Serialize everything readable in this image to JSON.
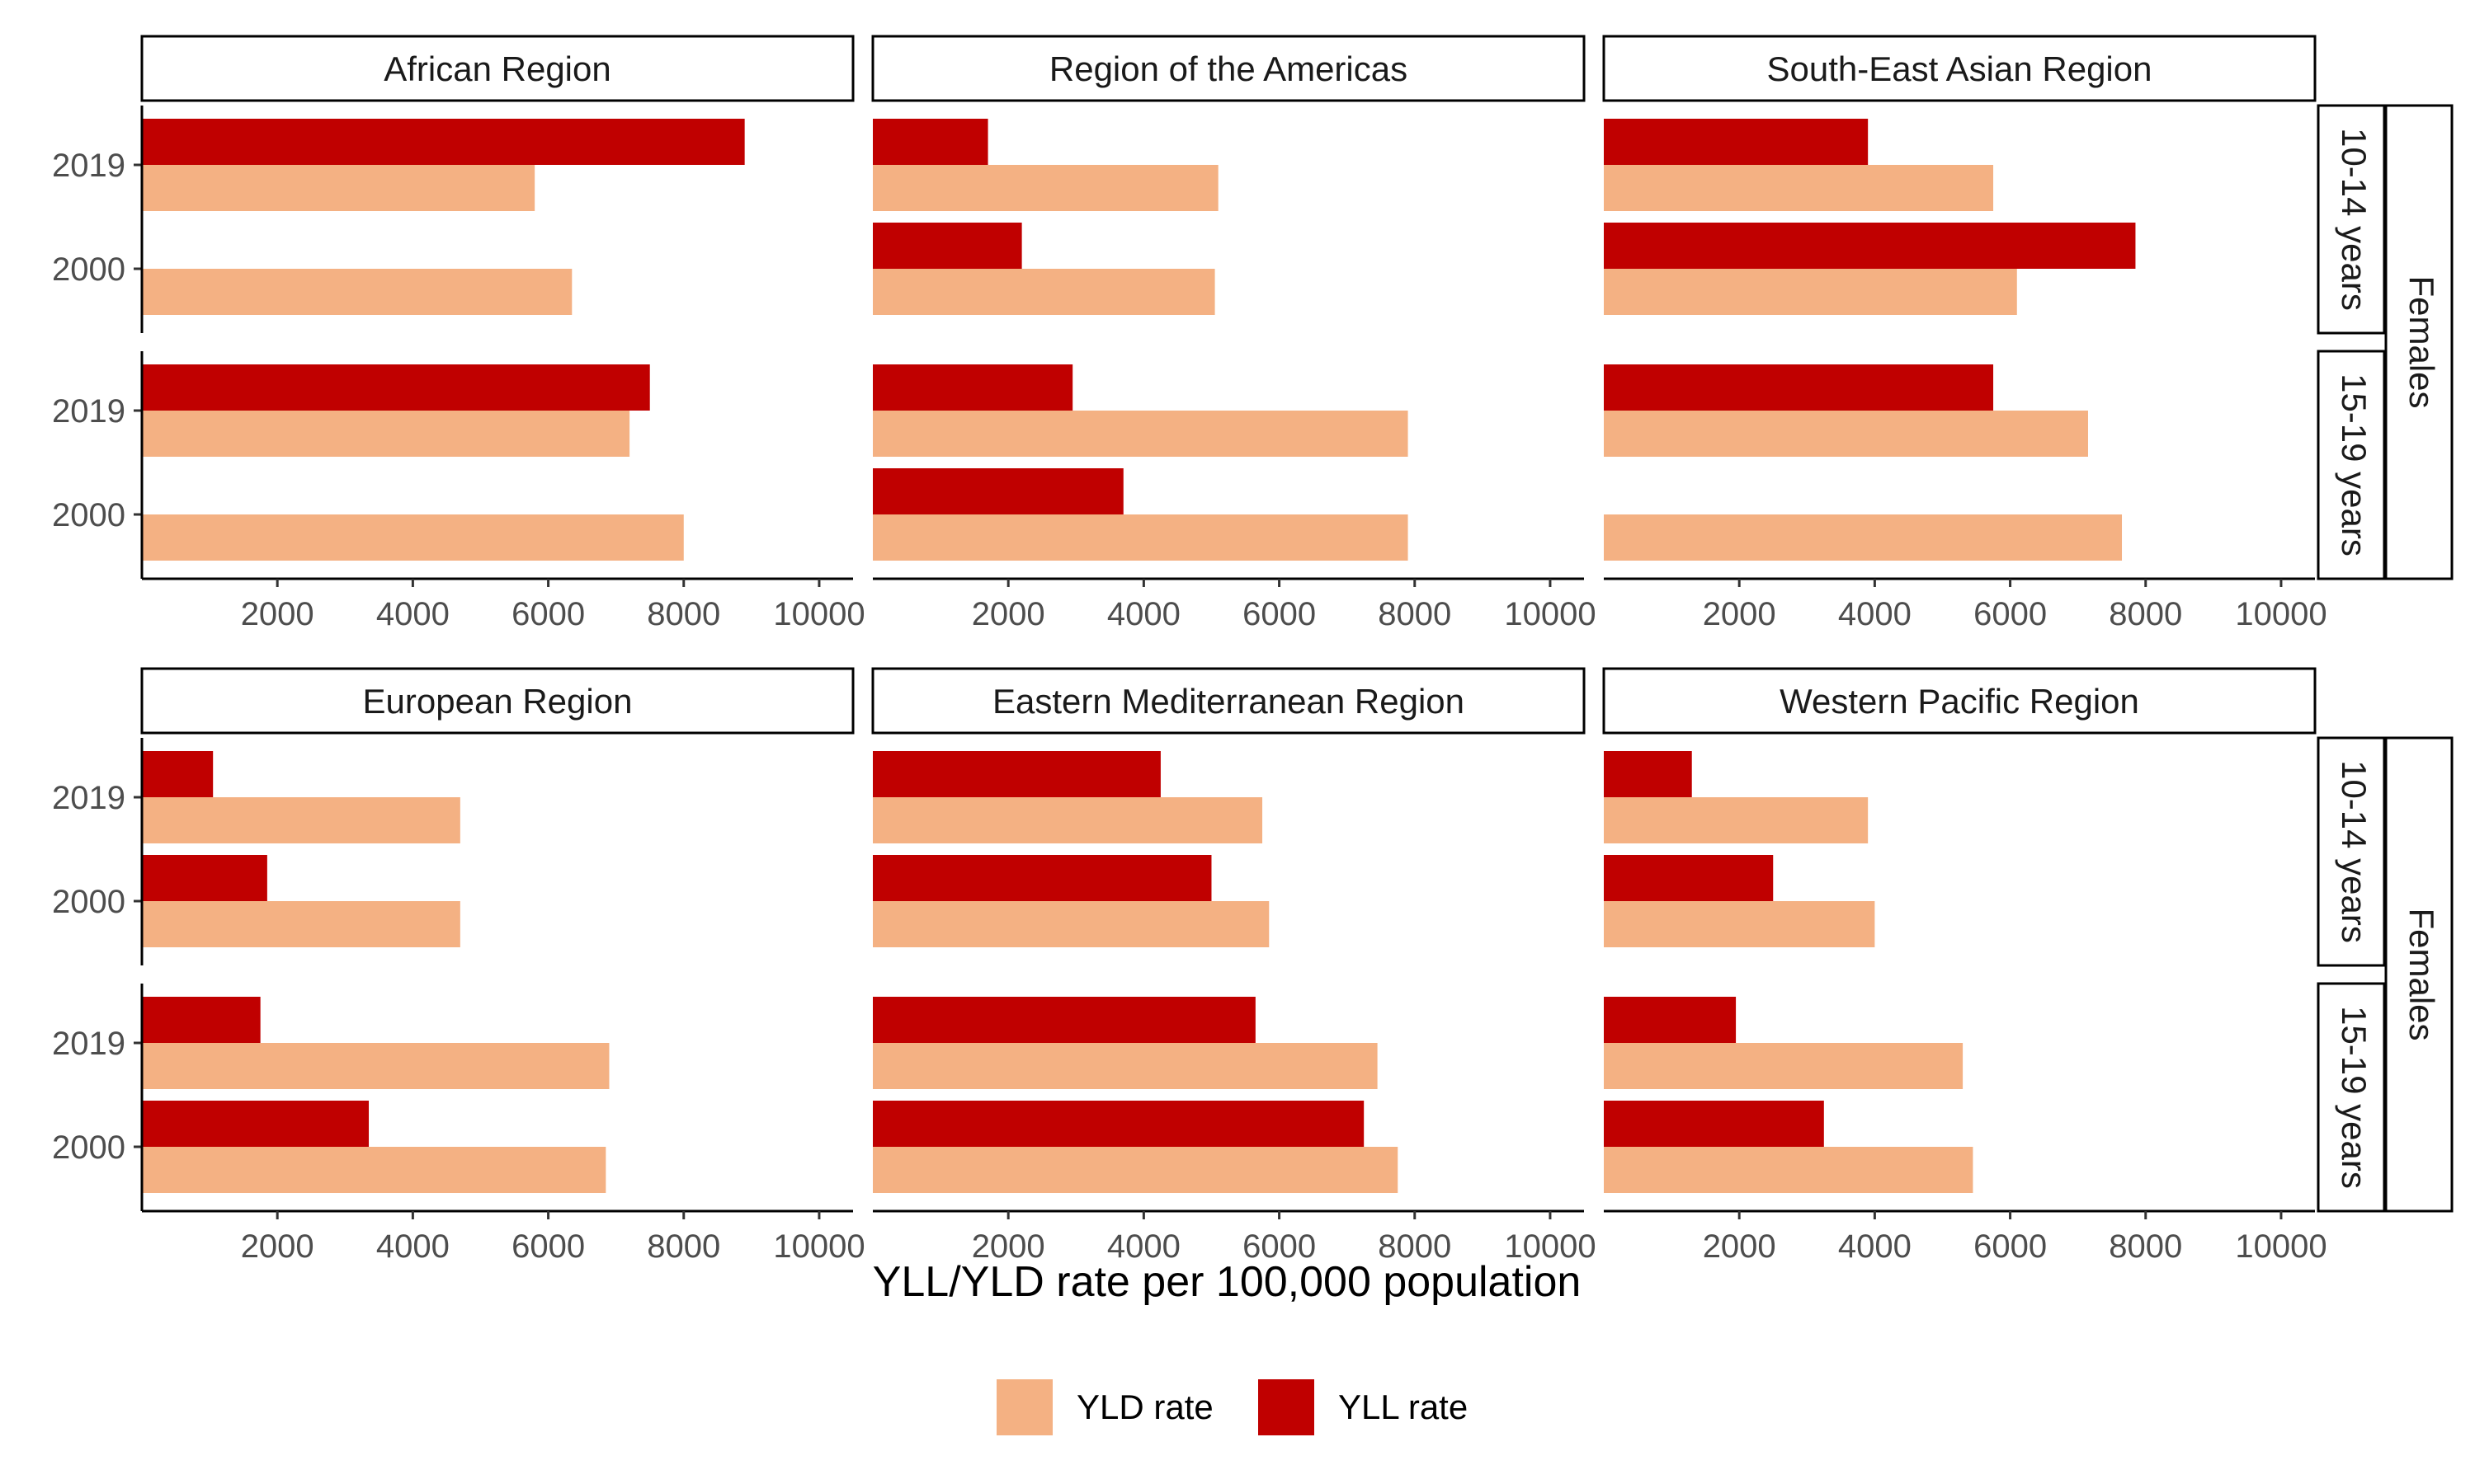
{
  "chart_data": {
    "type": "bar",
    "orientation": "horizontal",
    "facet_rows": [
      {
        "panels": [
          "African Region",
          "Region of the Americas",
          "South-East Asian Region"
        ],
        "age_groups": [
          "10-14 years",
          "15-19 years"
        ],
        "sex": "Females"
      },
      {
        "panels": [
          "European Region",
          "Eastern Mediterranean Region",
          "Western Pacific Region"
        ],
        "age_groups": [
          "10-14 years",
          "15-19 years"
        ],
        "sex": "Females"
      }
    ],
    "years": [
      "2019",
      "2000"
    ],
    "xlabel": "YLL/YLD rate per 100,000 population",
    "x_ticks": [
      "2000",
      "4000",
      "6000",
      "8000",
      "10000"
    ],
    "xlim": [
      0,
      10500
    ],
    "series": [
      {
        "name": "YLD rate",
        "color": "#F4B183"
      },
      {
        "name": "YLL rate",
        "color": "#C00000"
      }
    ],
    "legend_position": "bottom",
    "grid": false,
    "values": {
      "African Region": {
        "10-14 years": {
          "2019": {
            "YLD rate": 5800,
            "YLL rate": 8900
          },
          "2000": {
            "YLD rate": 6350,
            "YLL rate": null
          }
        },
        "15-19 years": {
          "2019": {
            "YLD rate": 7200,
            "YLL rate": 7500
          },
          "2000": {
            "YLD rate": 8000,
            "YLL rate": null
          }
        }
      },
      "Region of the Americas": {
        "10-14 years": {
          "2019": {
            "YLD rate": 5100,
            "YLL rate": 1700
          },
          "2000": {
            "YLD rate": 5050,
            "YLL rate": 2200
          }
        },
        "15-19 years": {
          "2019": {
            "YLD rate": 7900,
            "YLL rate": 2950
          },
          "2000": {
            "YLD rate": 7900,
            "YLL rate": 3700
          }
        }
      },
      "South-East Asian Region": {
        "10-14 years": {
          "2019": {
            "YLD rate": 5750,
            "YLL rate": 3900
          },
          "2000": {
            "YLD rate": 6100,
            "YLL rate": 7850
          }
        },
        "15-19 years": {
          "2019": {
            "YLD rate": 7150,
            "YLL rate": 5750
          },
          "2000": {
            "YLD rate": 7650,
            "YLL rate": null
          }
        }
      },
      "European Region": {
        "10-14 years": {
          "2019": {
            "YLD rate": 4700,
            "YLL rate": 1050
          },
          "2000": {
            "YLD rate": 4700,
            "YLL rate": 1850
          }
        },
        "15-19 years": {
          "2019": {
            "YLD rate": 6900,
            "YLL rate": 1750
          },
          "2000": {
            "YLD rate": 6850,
            "YLL rate": 3350
          }
        }
      },
      "Eastern Mediterranean Region": {
        "10-14 years": {
          "2019": {
            "YLD rate": 5750,
            "YLL rate": 4250
          },
          "2000": {
            "YLD rate": 5850,
            "YLL rate": 5000
          }
        },
        "15-19 years": {
          "2019": {
            "YLD rate": 7450,
            "YLL rate": 5650
          },
          "2000": {
            "YLD rate": 7750,
            "YLL rate": 7250
          }
        }
      },
      "Western Pacific Region": {
        "10-14 years": {
          "2019": {
            "YLD rate": 3900,
            "YLL rate": 1300
          },
          "2000": {
            "YLD rate": 4000,
            "YLL rate": 2500
          }
        },
        "15-19 years": {
          "2019": {
            "YLD rate": 5300,
            "YLL rate": 1950
          },
          "2000": {
            "YLD rate": 5450,
            "YLL rate": 3250
          }
        }
      }
    }
  }
}
